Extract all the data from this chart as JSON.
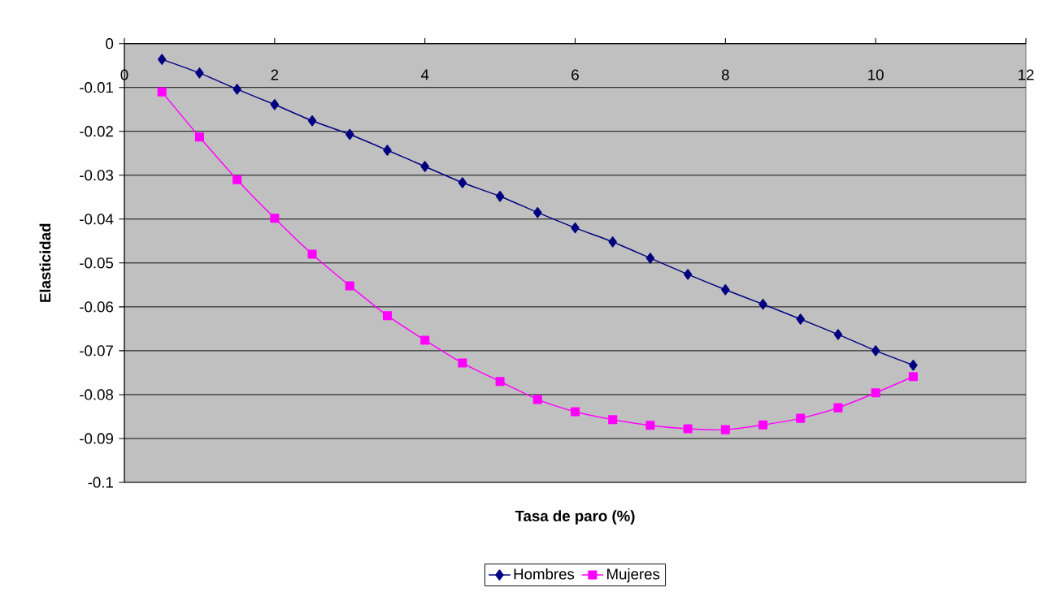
{
  "chart_data": {
    "type": "line",
    "xlabel": "Tasa de paro (%)",
    "ylabel": "Elasticidad",
    "x": [
      0.5,
      1,
      1.5,
      2,
      2.5,
      3,
      3.5,
      4,
      4.5,
      5,
      5.5,
      6,
      6.5,
      7,
      7.5,
      8,
      8.5,
      9,
      9.5,
      10,
      10.5
    ],
    "series": [
      {
        "name": "Hombres",
        "color": "#000080",
        "marker": "diamond",
        "values": [
          -0.0036,
          -0.0067,
          -0.0104,
          -0.0139,
          -0.0176,
          -0.0207,
          -0.0243,
          -0.028,
          -0.0317,
          -0.0348,
          -0.0385,
          -0.042,
          -0.0452,
          -0.0489,
          -0.0526,
          -0.0561,
          -0.0594,
          -0.0628,
          -0.0663,
          -0.07,
          -0.0733
        ]
      },
      {
        "name": "Mujeres",
        "color": "#ff00ff",
        "marker": "square",
        "values": [
          -0.011,
          -0.0213,
          -0.031,
          -0.0398,
          -0.048,
          -0.0552,
          -0.062,
          -0.0676,
          -0.0728,
          -0.077,
          -0.0811,
          -0.0839,
          -0.0857,
          -0.087,
          -0.0878,
          -0.088,
          -0.0869,
          -0.0854,
          -0.083,
          -0.0796,
          -0.0759
        ]
      }
    ],
    "xlim": [
      0,
      12
    ],
    "ylim": [
      -0.1,
      0
    ],
    "xticks": [
      0,
      2,
      4,
      6,
      8,
      10,
      12
    ],
    "yticks": [
      0,
      -0.01,
      -0.02,
      -0.03,
      -0.04,
      -0.05,
      -0.06,
      -0.07,
      -0.08,
      -0.09,
      -0.1
    ],
    "grid": "y",
    "legend": "bottom"
  }
}
